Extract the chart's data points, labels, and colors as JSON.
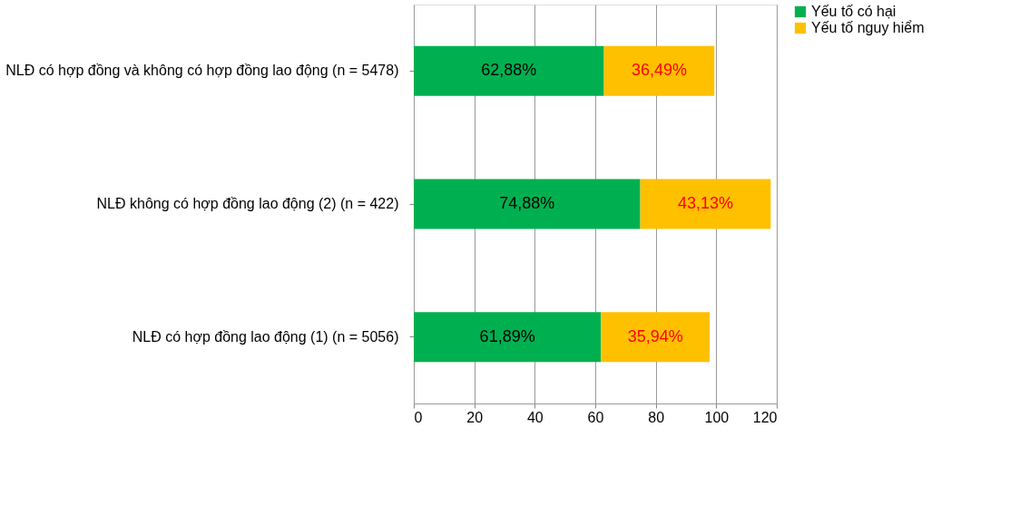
{
  "chart_data": {
    "type": "bar",
    "orientation": "horizontal",
    "stacked": true,
    "categories": [
      "NLĐ có hợp đồng và không có hợp đồng lao động (n = 5478)",
      "NLĐ không có hợp đồng lao động (2) (n = 422)",
      "NLĐ có hợp đồng lao động (1) (n = 5056)"
    ],
    "series": [
      {
        "name": "Yếu tố có hại",
        "color": "#00b050",
        "values": [
          62.88,
          74.88,
          61.89
        ],
        "value_labels": [
          "62,88%",
          "74,88%",
          "61,89%"
        ]
      },
      {
        "name": "Yếu tố nguy hiểm",
        "color": "#ffc000",
        "values": [
          36.49,
          43.13,
          35.94
        ],
        "value_labels": [
          "36,49%",
          "43,13%",
          "35,94%"
        ]
      }
    ],
    "xlim": [
      0,
      120
    ],
    "xticks": [
      0,
      20,
      40,
      60,
      80,
      100,
      120
    ],
    "grid": "x",
    "legend": "right"
  }
}
